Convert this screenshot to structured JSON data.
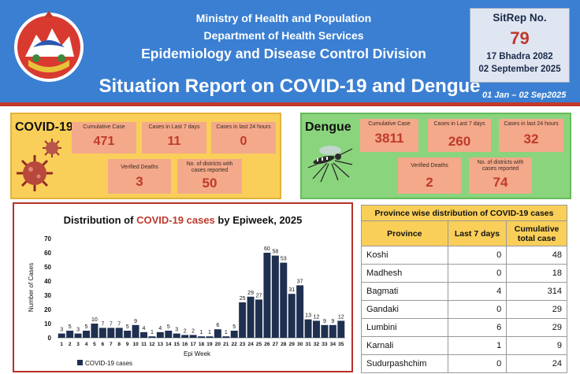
{
  "header": {
    "ministry": "Ministry of Health and Population",
    "department": "Department of Health Services",
    "division": "Epidemiology and Disease Control Division",
    "title": "Situation Report on COVID-19 and Dengue",
    "date_range": "01 Jan – 02 Sep2025",
    "sitrep": {
      "label": "SitRep No.",
      "number": "79",
      "date_nepali": "17 Bhadra 2082",
      "date_english": "02 September 2025"
    }
  },
  "covid": {
    "title": "COVID-19",
    "stats": [
      {
        "label": "Cumulative Case",
        "value": "471"
      },
      {
        "label": "Cases in Last 7 days",
        "value": "11"
      },
      {
        "label": "Cases in last 24 hours",
        "value": "0"
      },
      {
        "label": "Verified Deaths",
        "value": "3"
      },
      {
        "label": "No. of districts with cases reported",
        "value": "50"
      }
    ]
  },
  "dengue": {
    "title": "Dengue",
    "stats": [
      {
        "label": "Cumulative Case",
        "value": "3811"
      },
      {
        "label": "Cases in Last 7 days",
        "value": "260"
      },
      {
        "label": "Cases in last 24 hours",
        "value": "32"
      },
      {
        "label": "Verified Deaths",
        "value": "2"
      },
      {
        "label": "No. of districts with cases reported",
        "value": "74"
      }
    ]
  },
  "chart_data": {
    "type": "bar",
    "title_prefix": "Distribution of ",
    "title_highlight": "COVID-19 cases",
    "title_suffix": " by Epiweek, 2025",
    "xlabel": "Epi Week",
    "ylabel": "Number of Cases",
    "ylim": [
      0,
      70
    ],
    "yticks": [
      "0",
      "10",
      "20",
      "30",
      "40",
      "50",
      "60",
      "70"
    ],
    "grid": false,
    "legend_position": "bottom-left",
    "bar_color": "#1f2f4f",
    "series": [
      {
        "name": "COVID-19 cases",
        "values": [
          3,
          5,
          3,
          5,
          10,
          7,
          7,
          7,
          5,
          9,
          4,
          1,
          4,
          5,
          3,
          2,
          2,
          1,
          1,
          6,
          1,
          5,
          25,
          29,
          27,
          60,
          58,
          53,
          31,
          37,
          13,
          12,
          9,
          9,
          12
        ]
      }
    ],
    "categories": [
      "1",
      "2",
      "3",
      "4",
      "5",
      "6",
      "7",
      "8",
      "9",
      "10",
      "11",
      "12",
      "13",
      "14",
      "15",
      "16",
      "17",
      "18",
      "19",
      "20",
      "21",
      "22",
      "23",
      "24",
      "25",
      "26",
      "27",
      "28",
      "29",
      "30",
      "31",
      "32",
      "33",
      "34",
      "35"
    ]
  },
  "province_table": {
    "caption": "Province wise distribution of COVID-19 cases",
    "headers": [
      "Province",
      "Last 7 days",
      "Cumulative total case"
    ],
    "rows": [
      {
        "name": "Koshi",
        "last7": "0",
        "total": "48"
      },
      {
        "name": "Madhesh",
        "last7": "0",
        "total": "18"
      },
      {
        "name": "Bagmati",
        "last7": "4",
        "total": "314"
      },
      {
        "name": "Gandaki",
        "last7": "0",
        "total": "29"
      },
      {
        "name": "Lumbini",
        "last7": "6",
        "total": "29"
      },
      {
        "name": "Karnali",
        "last7": "1",
        "total": "9"
      },
      {
        "name": "Sudurpashchim",
        "last7": "0",
        "total": "24"
      }
    ]
  },
  "colors": {
    "header_blue": "#3b7fd2",
    "accent_red": "#c0392b",
    "covid_panel": "#f9cf59",
    "dengue_panel": "#8ad47d",
    "stat_box": "#f3a98a"
  }
}
